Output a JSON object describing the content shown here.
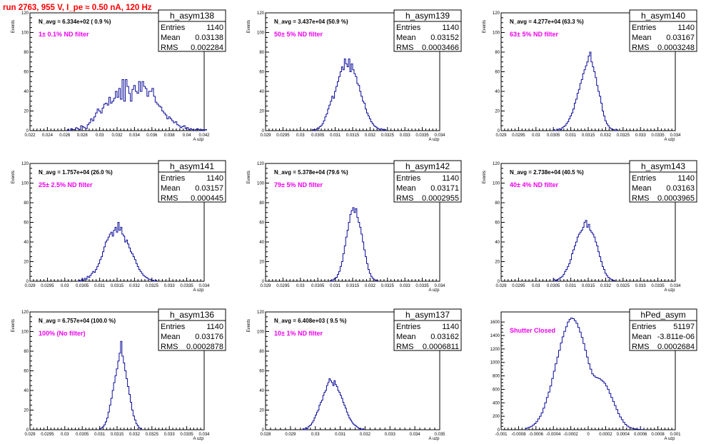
{
  "page_title": "run 2763,   955 V, I_pe ≈ 0.50 nA, 120 Hz",
  "colors": {
    "histogram": "#0a0a9a",
    "filter_label": "#ee00ee",
    "title": "#ff0000"
  },
  "chart_data": [
    {
      "type": "bar",
      "name": "h_asym138",
      "navg": "N_avg = 6.334e+02 ( 0.9 %)",
      "filter": "1± 0.1% ND filter",
      "stats": [
        [
          "Entries",
          "1140"
        ],
        [
          "Mean",
          "0.03138"
        ],
        [
          "RMS",
          "0.002284"
        ]
      ],
      "xlim": [
        0.021,
        0.042
      ],
      "xticks": [
        "0.022",
        "0.024",
        "0.026",
        "0.028",
        "0.03",
        "0.032",
        "0.034",
        "0.036",
        "0.038",
        "0.04",
        "0.042"
      ],
      "xlabel": "A uzp",
      "ylabel": "Events",
      "ylim": [
        0,
        120
      ],
      "yticks": [
        0,
        20,
        40,
        60,
        80,
        100,
        120
      ],
      "x0": 0.0255,
      "bin": 0.0002,
      "values": [
        1,
        0,
        2,
        1,
        1,
        3,
        2,
        1,
        5,
        4,
        3,
        2,
        6,
        8,
        12,
        10,
        14,
        18,
        22,
        20,
        18,
        23,
        27,
        28,
        26,
        34,
        28,
        30,
        33,
        40,
        34,
        43,
        32,
        52,
        30,
        52,
        45,
        38,
        30,
        42,
        46,
        40,
        38,
        50,
        40,
        50,
        45,
        43,
        35,
        40,
        40,
        43,
        35,
        29,
        27,
        25,
        24,
        20,
        18,
        16,
        12,
        14,
        12,
        10,
        8,
        9,
        6,
        5,
        3,
        4,
        5,
        2,
        3,
        1,
        2,
        1,
        0,
        1,
        2,
        1,
        0,
        1,
        0,
        1
      ]
    },
    {
      "type": "bar",
      "name": "h_asym139",
      "navg": "N_avg = 3.437e+04 (50.9 %)",
      "filter": "50± 5% ND filter",
      "stats": [
        [
          "Entries",
          "1140"
        ],
        [
          "Mean",
          "0.03152"
        ],
        [
          "RMS",
          "0.0003466"
        ]
      ],
      "xlim": [
        0.029,
        0.034
      ],
      "xticks": [
        "0.029",
        "0.0295",
        "0.03",
        "0.0305",
        "0.031",
        "0.0315",
        "0.032",
        "0.0325",
        "0.033",
        "0.0335",
        "0.034"
      ],
      "xlabel": "A uzp",
      "ylabel": "Events",
      "ylim": [
        0,
        120
      ],
      "yticks": [
        0,
        20,
        40,
        60,
        80,
        100,
        120
      ],
      "x0": 0.03034,
      "bin": 4e-05,
      "values": [
        1,
        0,
        1,
        2,
        2,
        4,
        5,
        7,
        10,
        14,
        17,
        22,
        26,
        30,
        35,
        33,
        40,
        45,
        50,
        55,
        60,
        65,
        62,
        73,
        68,
        65,
        73,
        60,
        68,
        62,
        58,
        55,
        48,
        46,
        40,
        35,
        30,
        28,
        22,
        18,
        15,
        12,
        9,
        7,
        5,
        4,
        3,
        2,
        1,
        2,
        1,
        0,
        1
      ]
    },
    {
      "type": "bar",
      "name": "h_asym140",
      "navg": "N_avg = 4.277e+04 (63.3 %)",
      "filter": "63± 5% ND filter",
      "stats": [
        [
          "Entries",
          "1140"
        ],
        [
          "Mean",
          "0.03167"
        ],
        [
          "RMS",
          "0.0003248"
        ]
      ],
      "xlim": [
        0.029,
        0.034
      ],
      "xticks": [
        "0.029",
        "0.0295",
        "0.03",
        "0.0305",
        "0.031",
        "0.0315",
        "0.032",
        "0.0325",
        "0.033",
        "0.0335",
        "0.034"
      ],
      "xlabel": "A uzp",
      "ylabel": "Events",
      "ylim": [
        0,
        120
      ],
      "yticks": [
        0,
        20,
        40,
        60,
        80,
        100,
        120
      ],
      "x0": 0.0305,
      "bin": 4e-05,
      "values": [
        1,
        0,
        0,
        1,
        2,
        1,
        3,
        4,
        5,
        7,
        9,
        12,
        15,
        18,
        22,
        28,
        32,
        38,
        42,
        48,
        52,
        58,
        62,
        66,
        70,
        76,
        80,
        70,
        65,
        60,
        54,
        46,
        40,
        35,
        28,
        20,
        15,
        10,
        7,
        5,
        3,
        2,
        1,
        1,
        0,
        1
      ]
    },
    {
      "type": "bar",
      "name": "h_asym141",
      "navg": "N_avg = 1.757e+04 (26.0 %)",
      "filter": "25± 2.5% ND filter",
      "stats": [
        [
          "Entries",
          "1140"
        ],
        [
          "Mean",
          "0.03157"
        ],
        [
          "RMS",
          "0.000445"
        ]
      ],
      "xlim": [
        0.029,
        0.034
      ],
      "xticks": [
        "0.029",
        "0.0295",
        "0.03",
        "0.0305",
        "0.031",
        "0.0315",
        "0.032",
        "0.0325",
        "0.033",
        "0.0335",
        "0.034"
      ],
      "xlabel": "A uzp",
      "ylabel": "Events",
      "ylim": [
        0,
        120
      ],
      "yticks": [
        0,
        20,
        40,
        60,
        80,
        100,
        120
      ],
      "x0": 0.0304,
      "bin": 4e-05,
      "values": [
        1,
        0,
        2,
        1,
        3,
        2,
        5,
        4,
        6,
        8,
        10,
        9,
        12,
        15,
        18,
        22,
        25,
        30,
        35,
        40,
        42,
        45,
        48,
        50,
        46,
        52,
        55,
        50,
        60,
        52,
        55,
        48,
        46,
        40,
        42,
        38,
        34,
        30,
        28,
        25,
        22,
        18,
        15,
        12,
        10,
        8,
        6,
        5,
        4,
        3,
        2,
        2,
        1,
        1,
        0,
        1
      ]
    },
    {
      "type": "bar",
      "name": "h_asym142",
      "navg": "N_avg = 5.378e+04 (79.6 %)",
      "filter": "79± 5% ND filter",
      "stats": [
        [
          "Entries",
          "1140"
        ],
        [
          "Mean",
          "0.03171"
        ],
        [
          "RMS",
          "0.0002955"
        ]
      ],
      "xlim": [
        0.029,
        0.034
      ],
      "xticks": [
        "0.029",
        "0.0295",
        "0.03",
        "0.0305",
        "0.031",
        "0.0315",
        "0.032",
        "0.0325",
        "0.033",
        "0.0335",
        "0.034"
      ],
      "xlabel": "A uzp",
      "ylabel": "Events",
      "ylim": [
        0,
        120
      ],
      "yticks": [
        0,
        20,
        40,
        60,
        80,
        100,
        120
      ],
      "x0": 0.03086,
      "bin": 4e-05,
      "values": [
        1,
        0,
        2,
        3,
        4,
        7,
        10,
        15,
        20,
        28,
        36,
        45,
        52,
        60,
        68,
        72,
        75,
        70,
        74,
        65,
        60,
        55,
        48,
        40,
        32,
        25,
        18,
        12,
        8,
        5,
        3,
        2,
        1,
        1
      ]
    },
    {
      "type": "bar",
      "name": "h_asym143",
      "navg": "N_avg = 2.738e+04 (40.5 %)",
      "filter": "40± 4% ND filter",
      "stats": [
        [
          "Entries",
          "1140"
        ],
        [
          "Mean",
          "0.03163"
        ],
        [
          "RMS",
          "0.0003965"
        ]
      ],
      "xlim": [
        0.029,
        0.034
      ],
      "xticks": [
        "0.029",
        "0.0295",
        "0.03",
        "0.0305",
        "0.031",
        "0.0315",
        "0.032",
        "0.0325",
        "0.033",
        "0.0335",
        "0.034"
      ],
      "xlabel": "A uzp",
      "ylabel": "Events",
      "ylim": [
        0,
        120
      ],
      "yticks": [
        0,
        20,
        40,
        60,
        80,
        100,
        120
      ],
      "x0": 0.0305,
      "bin": 4e-05,
      "values": [
        2,
        1,
        0,
        2,
        3,
        4,
        5,
        7,
        10,
        12,
        15,
        18,
        22,
        28,
        32,
        36,
        40,
        45,
        48,
        50,
        52,
        55,
        60,
        62,
        55,
        58,
        52,
        50,
        48,
        45,
        40,
        36,
        30,
        25,
        20,
        15,
        12,
        8,
        6,
        4,
        3,
        2,
        1,
        1
      ]
    },
    {
      "type": "bar",
      "name": "h_asym136",
      "navg": "N_avg = 6.757e+04 (100.0 %)",
      "filter": "100% (No filter)",
      "stats": [
        [
          "Entries",
          "1140"
        ],
        [
          "Mean",
          "0.03176"
        ],
        [
          "RMS",
          "0.0002878"
        ]
      ],
      "xlim": [
        0.029,
        0.034
      ],
      "xticks": [
        "0.029",
        "0.0295",
        "0.03",
        "0.0305",
        "0.031",
        "0.0315",
        "0.032",
        "0.0325",
        "0.033",
        "0.0335",
        "0.034"
      ],
      "xlabel": "A uzp",
      "ylabel": "Events",
      "ylim": [
        0,
        120
      ],
      "yticks": [
        0,
        20,
        40,
        60,
        80,
        100,
        120
      ],
      "x0": 0.031,
      "bin": 4e-05,
      "values": [
        1,
        2,
        3,
        5,
        8,
        12,
        18,
        25,
        32,
        40,
        48,
        55,
        62,
        70,
        78,
        90,
        75,
        68,
        60,
        52,
        44,
        36,
        28,
        20,
        14,
        10,
        6,
        4,
        2,
        1
      ]
    },
    {
      "type": "bar",
      "name": "h_asym137",
      "navg": "N_avg = 6.408e+03 ( 9.5 %)",
      "filter": "10± 1% ND filter",
      "stats": [
        [
          "Entries",
          "1140"
        ],
        [
          "Mean",
          "0.03162"
        ],
        [
          "RMS",
          "0.0006811"
        ]
      ],
      "xlim": [
        0.028,
        0.035
      ],
      "xticks": [
        "0.028",
        "0.029",
        "0.03",
        "0.031",
        "0.032",
        "0.033",
        "0.034",
        "0.035"
      ],
      "xlabel": "A uzp",
      "ylabel": "Events",
      "ylim": [
        0,
        120
      ],
      "yticks": [
        0,
        20,
        40,
        60,
        80,
        100,
        120
      ],
      "x0": 0.0295,
      "bin": 5e-05,
      "values": [
        1,
        0,
        2,
        1,
        3,
        4,
        5,
        7,
        9,
        12,
        15,
        18,
        20,
        25,
        28,
        30,
        35,
        38,
        40,
        45,
        48,
        52,
        50,
        48,
        45,
        50,
        46,
        44,
        40,
        38,
        35,
        32,
        28,
        25,
        22,
        18,
        15,
        12,
        10,
        8,
        6,
        5,
        4,
        3,
        2,
        1,
        1,
        0,
        1
      ]
    },
    {
      "type": "bar",
      "name": "hPed_asym",
      "navg": "",
      "filter": "Shutter Closed",
      "stats": [
        [
          "Entries",
          "51197"
        ],
        [
          "Mean",
          "-3.811e-06"
        ],
        [
          "RMS",
          "0.0002684"
        ]
      ],
      "xlim": [
        -0.001,
        0.001
      ],
      "xticks": [
        "-0.001",
        "-0.0008",
        "-0.0006",
        "-0.0004",
        "-0.0002",
        "0",
        "0.0002",
        "0.0004",
        "0.0006",
        "0.0008",
        "0.001"
      ],
      "xlabel": "A uzp",
      "ylabel": "",
      "ylim": [
        0,
        1750
      ],
      "yticks": [
        0,
        200,
        400,
        600,
        800,
        1000,
        1200,
        1400,
        1600
      ],
      "x0": -0.00072,
      "bin": 2e-05,
      "values": [
        20,
        30,
        40,
        50,
        70,
        90,
        120,
        160,
        200,
        250,
        320,
        400,
        480,
        560,
        650,
        760,
        870,
        980,
        1080,
        1180,
        1290,
        1380,
        1460,
        1530,
        1600,
        1640,
        1660,
        1650,
        1620,
        1580,
        1520,
        1450,
        1370,
        1280,
        1180,
        1080,
        980,
        900,
        830,
        800,
        780,
        770,
        760,
        740,
        720,
        690,
        650,
        600,
        540,
        480,
        420,
        360,
        300,
        240,
        190,
        150,
        110,
        80,
        55,
        40,
        30,
        20,
        15,
        10,
        6,
        4,
        3,
        2
      ]
    }
  ]
}
